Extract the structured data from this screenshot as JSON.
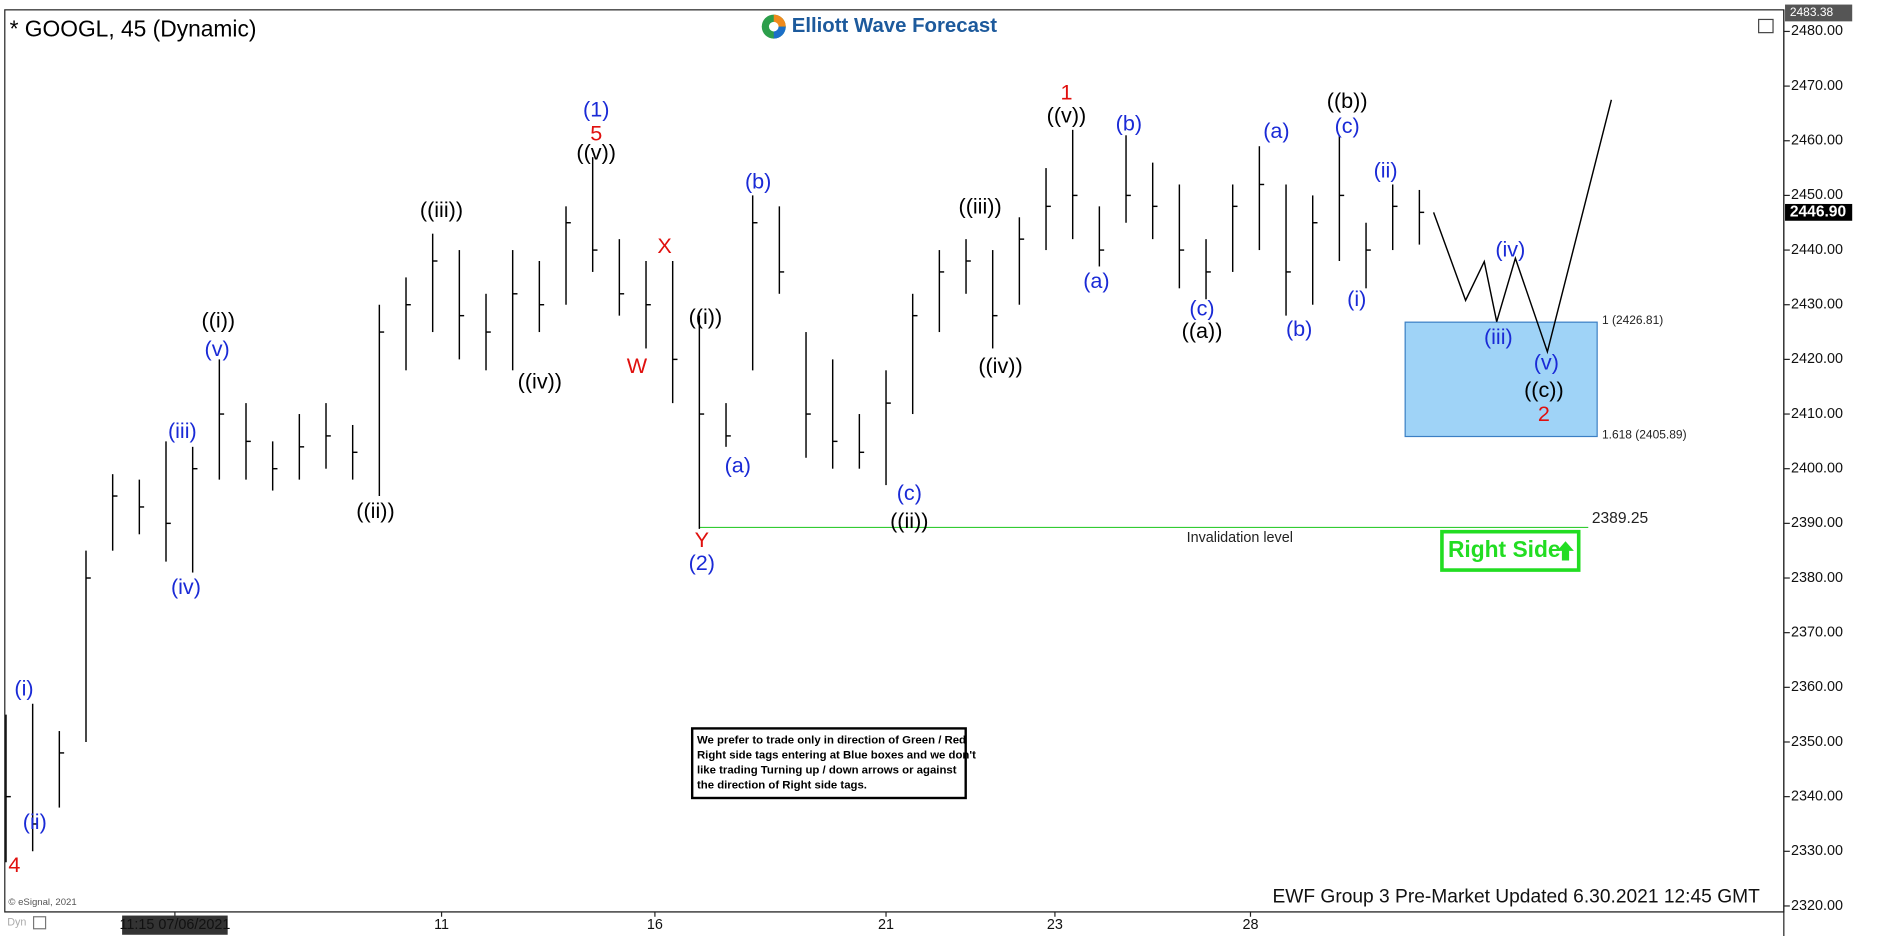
{
  "chart_data": {
    "type": "ohlc",
    "title": "* GOOGL, 45 (Dynamic)",
    "logo": "Elliott Wave Forecast",
    "footer": "EWF Group 3 Pre-Market Updated 6.30.2021 12:45 GMT",
    "copyright": "© eSignal, 2021",
    "corner_tag": "Dyn",
    "color": "#000000",
    "x": [
      0,
      3,
      6,
      9,
      12,
      15,
      18,
      21,
      24,
      27,
      30,
      33,
      36,
      39,
      42,
      45,
      48,
      51,
      54,
      57,
      60,
      63,
      66,
      69,
      72,
      75,
      78,
      81,
      84,
      87,
      90,
      93,
      96,
      99,
      102,
      105,
      108,
      111,
      114,
      117,
      120,
      123,
      126,
      129,
      132,
      135,
      138,
      141,
      144,
      147,
      150,
      153,
      156,
      159
    ],
    "high": [
      2355,
      2357,
      2352,
      2385,
      2399,
      2398,
      2405,
      2404,
      2420,
      2412,
      2405,
      2410,
      2412,
      2408,
      2430,
      2435,
      2443,
      2440,
      2432,
      2440,
      2438,
      2448,
      2457,
      2442,
      2438,
      2438,
      2428,
      2412,
      2450,
      2448,
      2425,
      2420,
      2410,
      2418,
      2432,
      2440,
      2442,
      2440,
      2446,
      2455,
      2462,
      2448,
      2461,
      2456,
      2452,
      2442,
      2452,
      2459,
      2452,
      2450,
      2461,
      2445,
      2452,
      2451
    ],
    "low": [
      2328,
      2330,
      2338,
      2350,
      2385,
      2388,
      2383,
      2381,
      2398,
      2398,
      2396,
      2398,
      2400,
      2398,
      2395,
      2418,
      2425,
      2420,
      2418,
      2418,
      2425,
      2430,
      2436,
      2428,
      2422,
      2412,
      2389,
      2404,
      2418,
      2432,
      2402,
      2400,
      2400,
      2397,
      2410,
      2425,
      2432,
      2422,
      2430,
      2440,
      2442,
      2437,
      2445,
      2442,
      2433,
      2431,
      2436,
      2440,
      2428,
      2430,
      2438,
      2433,
      2440,
      2441
    ],
    "close": [
      2340,
      2335,
      2348,
      2380,
      2395,
      2393,
      2390,
      2400,
      2410,
      2405,
      2400,
      2404,
      2406,
      2403,
      2425,
      2430,
      2438,
      2428,
      2425,
      2432,
      2430,
      2445,
      2440,
      2432,
      2430,
      2420,
      2410,
      2406,
      2445,
      2436,
      2410,
      2405,
      2403,
      2412,
      2428,
      2436,
      2438,
      2428,
      2442,
      2448,
      2450,
      2440,
      2450,
      2448,
      2440,
      2436,
      2448,
      2452,
      2436,
      2445,
      2450,
      2440,
      2448,
      2446.9
    ],
    "projection": {
      "x": [
        160.6,
        164.2,
        166.3,
        167.7,
        169.8,
        173.4,
        180.6
      ],
      "values": [
        2446.9,
        2430.8,
        2437.9,
        2426.9,
        2438.5,
        2421.4,
        2467.5
      ],
      "color": "#000000"
    },
    "box": {
      "x": [
        157.4,
        179
      ],
      "top": 2426.81,
      "bottom": 2405.89,
      "top_label": "1 (2426.81)",
      "bottom_label": "1.618 (2405.89)",
      "color": "#9fd3f7"
    },
    "invalidation": {
      "value": 2389.25,
      "x": [
        78,
        178
      ],
      "label": "Invalidation level",
      "color": "#33cc33"
    },
    "last_price": {
      "value": 2446.9,
      "label": "2446.90"
    },
    "high_price": {
      "value": 2483.38,
      "label": "2483.38"
    },
    "right_side": {
      "label": "Right Side",
      "color": "#22dd22"
    },
    "note": [
      "We prefer to trade only in direction of Green / Red",
      "Right side tags entering at Blue boxes and we don't",
      "like trading Turning up / down arrows or against",
      "the direction of Right side tags."
    ],
    "annotations": [
      {
        "text": "4",
        "color": "#e0100e"
      },
      {
        "text": "(i)",
        "color": "#1a2ad6"
      },
      {
        "text": "(ii)",
        "color": "#1a2ad6"
      },
      {
        "text": "(iii)",
        "color": "#1a2ad6"
      },
      {
        "text": "(iv)",
        "color": "#1a2ad6"
      },
      {
        "text": "(v)",
        "color": "#1a2ad6"
      },
      {
        "text": "((i))",
        "color": "#000000"
      },
      {
        "text": "((ii))",
        "color": "#000000"
      },
      {
        "text": "((iii))",
        "color": "#000000"
      },
      {
        "text": "((iv))",
        "color": "#000000"
      },
      {
        "text": "(1)",
        "color": "#1a2ad6"
      },
      {
        "text": "5",
        "color": "#e0100e"
      },
      {
        "text": "((v))",
        "color": "#000000"
      },
      {
        "text": "W",
        "color": "#e0100e"
      },
      {
        "text": "X",
        "color": "#e0100e"
      },
      {
        "text": "Y",
        "color": "#e0100e"
      },
      {
        "text": "(2)",
        "color": "#1a2ad6"
      },
      {
        "text": "((i))",
        "color": "#000000"
      },
      {
        "text": "(a)",
        "color": "#1a2ad6"
      },
      {
        "text": "(b)",
        "color": "#1a2ad6"
      },
      {
        "text": "(c)",
        "color": "#1a2ad6"
      },
      {
        "text": "((ii))",
        "color": "#000000"
      },
      {
        "text": "((iii))",
        "color": "#000000"
      },
      {
        "text": "((iv))",
        "color": "#000000"
      },
      {
        "text": "1",
        "color": "#e0100e"
      },
      {
        "text": "((v))",
        "color": "#000000"
      },
      {
        "text": "(b)",
        "color": "#1a2ad6"
      },
      {
        "text": "(a)",
        "color": "#1a2ad6"
      },
      {
        "text": "(c)",
        "color": "#1a2ad6"
      },
      {
        "text": "((a))",
        "color": "#000000"
      },
      {
        "text": "(a)",
        "color": "#1a2ad6"
      },
      {
        "text": "(b)",
        "color": "#1a2ad6"
      },
      {
        "text": "((b))",
        "color": "#000000"
      },
      {
        "text": "(c)",
        "color": "#1a2ad6"
      },
      {
        "text": "(ii)",
        "color": "#1a2ad6"
      },
      {
        "text": "(i)",
        "color": "#1a2ad6"
      },
      {
        "text": "(iv)",
        "color": "#1a2ad6"
      },
      {
        "text": "(iii)",
        "color": "#1a2ad6"
      },
      {
        "text": "(v)",
        "color": "#1a2ad6"
      },
      {
        "text": "((c))",
        "color": "#000000"
      },
      {
        "text": "2",
        "color": "#e0100e"
      }
    ],
    "xlim": [
      0,
      200
    ],
    "xticks": [
      {
        "value": 19,
        "label": "11:15 07/06/2021"
      },
      {
        "value": 49,
        "label": "11"
      },
      {
        "value": 73,
        "label": "16"
      },
      {
        "value": 99,
        "label": "21"
      },
      {
        "value": 118,
        "label": "23"
      },
      {
        "value": 140,
        "label": "28"
      }
    ],
    "ylim": [
      2320,
      2480
    ],
    "yticks": [
      {
        "value": 2320,
        "label": "2320.00"
      },
      {
        "value": 2330,
        "label": "2330.00"
      },
      {
        "value": 2340,
        "label": "2340.00"
      },
      {
        "value": 2350,
        "label": "2350.00"
      },
      {
        "value": 2360,
        "label": "2360.00"
      },
      {
        "value": 2370,
        "label": "2370.00"
      },
      {
        "value": 2380,
        "label": "2380.00"
      },
      {
        "value": 2390,
        "label": "2390.00"
      },
      {
        "value": 2400,
        "label": "2400.00"
      },
      {
        "value": 2410,
        "label": "2410.00"
      },
      {
        "value": 2420,
        "label": "2420.00"
      },
      {
        "value": 2430,
        "label": "2430.00"
      },
      {
        "value": 2440,
        "label": "2440.00"
      },
      {
        "value": 2450,
        "label": "2450.00"
      },
      {
        "value": 2460,
        "label": "2460.00"
      },
      {
        "value": 2470,
        "label": "2470.00"
      },
      {
        "value": 2480,
        "label": "2480.00"
      }
    ]
  }
}
